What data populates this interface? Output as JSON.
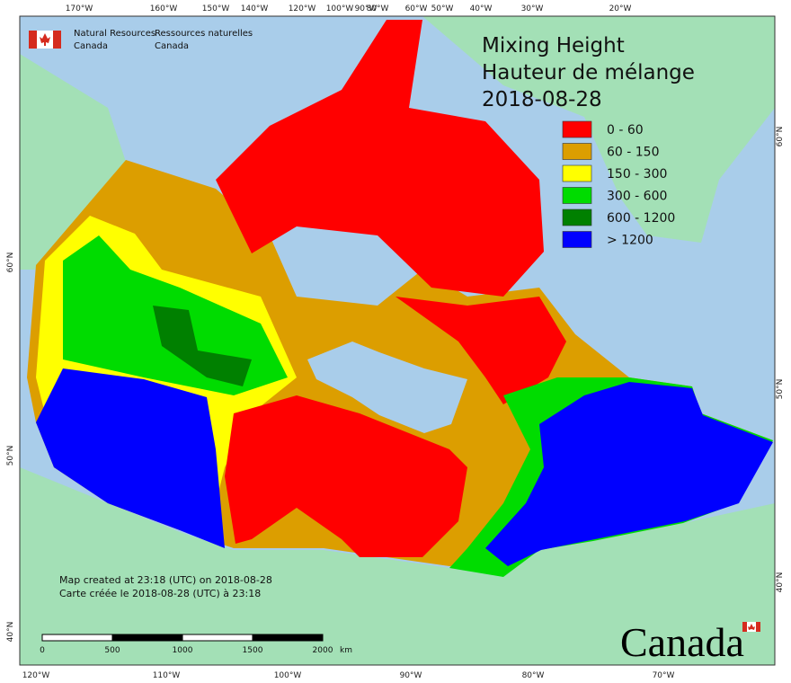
{
  "agency": {
    "en": [
      "Natural Resources",
      "Canada"
    ],
    "fr": [
      "Ressources naturelles",
      "Canada"
    ]
  },
  "title": [
    "Mixing Height",
    "Hauteur de mélange",
    "2018-08-28"
  ],
  "legend": [
    {
      "label": "0 - 60",
      "color": "#ff0000"
    },
    {
      "label": "60 - 150",
      "color": "#dc9e00"
    },
    {
      "label": "150 - 300",
      "color": "#ffff00"
    },
    {
      "label": "300 - 600",
      "color": "#00dc00"
    },
    {
      "label": "600 - 1200",
      "color": "#008000"
    },
    {
      "label": "> 1200",
      "color": "#0000ff"
    }
  ],
  "footer": [
    "Map created at 23:18 (UTC) on 2018-08-28",
    "Carte créée le 2018-08-28 (UTC) à 23:18"
  ],
  "scale_bar": {
    "labels": [
      "0",
      "500",
      "1000",
      "1500",
      "2000"
    ],
    "unit": "km"
  },
  "graticule": {
    "top": [
      "170°W",
      "160°W",
      "150°W",
      "140°W",
      "120°W",
      "100°W",
      "90°W",
      "80°W",
      "60°W",
      "50°W",
      "40°W",
      "30°W",
      "20°W"
    ],
    "bottom": [
      "120°W",
      "110°W",
      "100°W",
      "90°W",
      "80°W",
      "70°W"
    ],
    "left": [
      "60°N",
      "50°N",
      "40°N"
    ],
    "right": [
      "60°N",
      "50°N",
      "40°N"
    ]
  },
  "wordmark": "Canada"
}
